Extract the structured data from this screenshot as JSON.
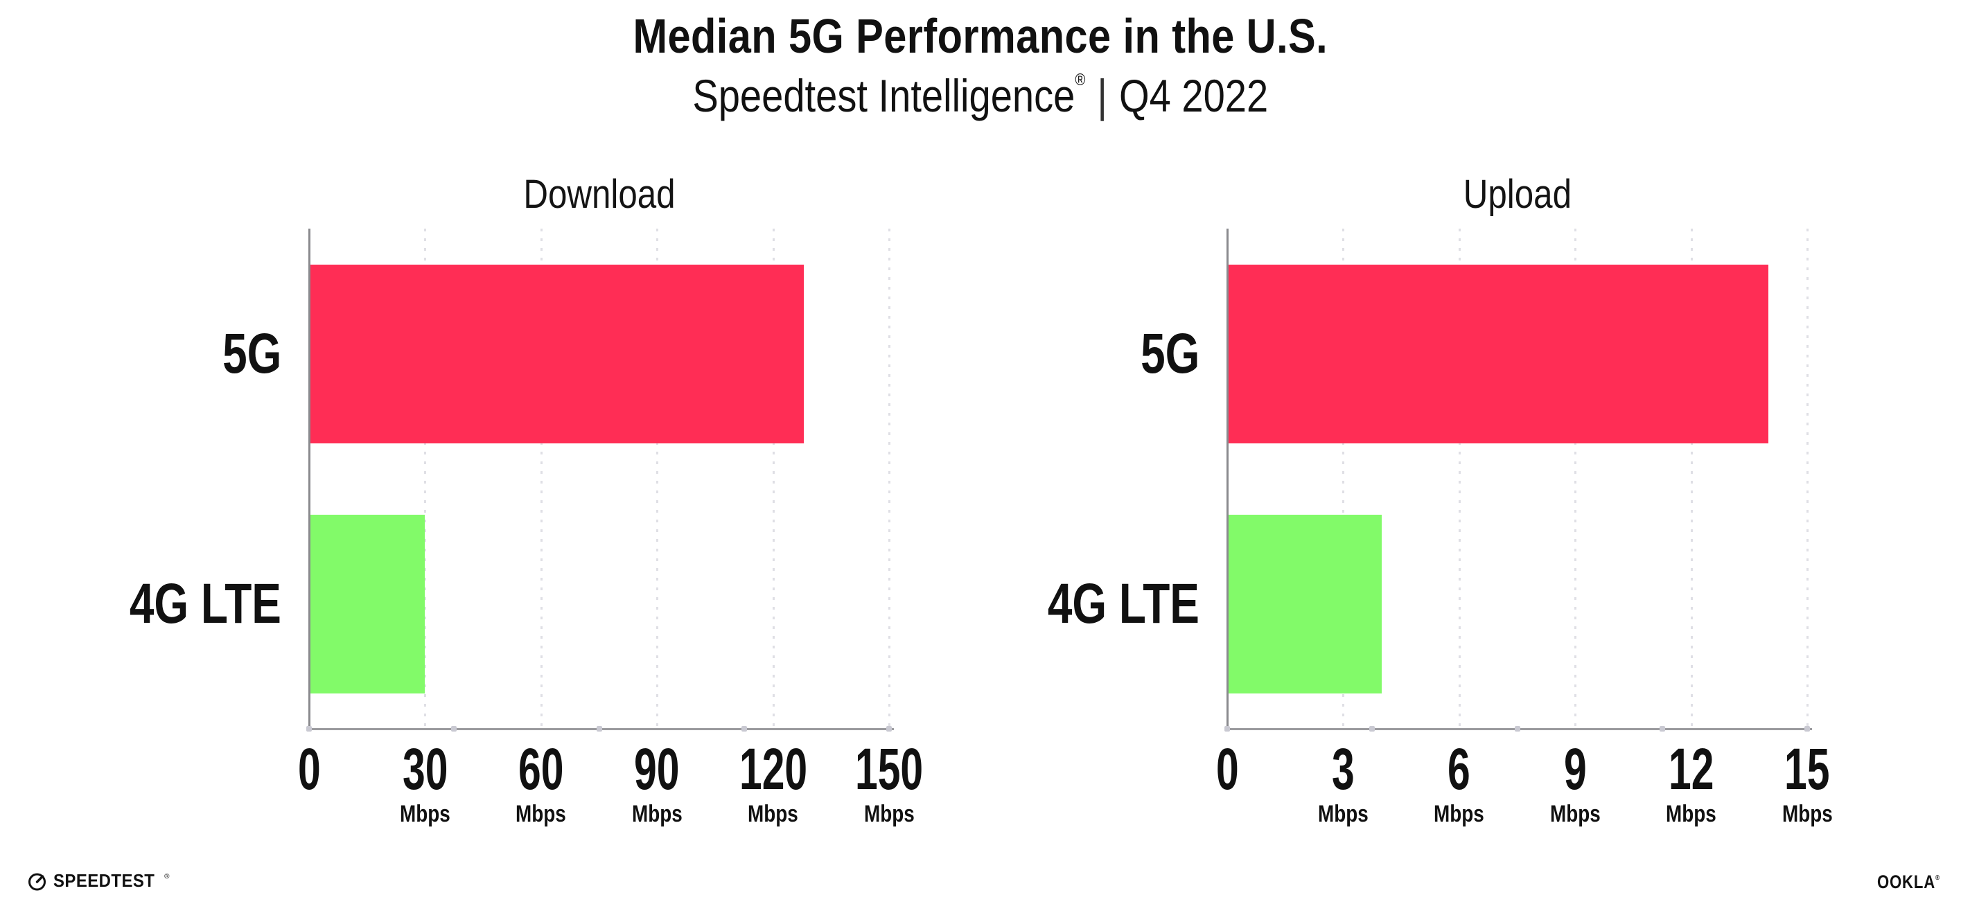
{
  "header": {
    "title": "Median 5G Performance in the U.S.",
    "subtitle_brand": "Speedtest Intelligence",
    "subtitle_reg": "®",
    "subtitle_separator": "|",
    "subtitle_period": "Q4 2022"
  },
  "colors": {
    "bar_5g": "#FF2D55",
    "bar_4g_lte": "#82FA69",
    "gridline": "#dfdfe5",
    "axis": "#9a9a9e",
    "text": "#111111"
  },
  "chart_data": [
    {
      "type": "bar",
      "orientation": "horizontal",
      "title": "Download",
      "categories": [
        "5G",
        "4G LTE"
      ],
      "values": [
        128,
        30
      ],
      "unit": "Mbps",
      "xlim": [
        0,
        150
      ],
      "ticks": [
        0,
        30,
        60,
        90,
        120,
        150
      ],
      "bar_colors": [
        "#FF2D55",
        "#82FA69"
      ],
      "grid": "dotted-vertical",
      "legend": "none"
    },
    {
      "type": "bar",
      "orientation": "horizontal",
      "title": "Upload",
      "categories": [
        "5G",
        "4G LTE"
      ],
      "values": [
        14,
        4
      ],
      "unit": "Mbps",
      "xlim": [
        0,
        15
      ],
      "ticks": [
        0,
        3,
        6,
        9,
        12,
        15
      ],
      "bar_colors": [
        "#FF2D55",
        "#82FA69"
      ],
      "grid": "dotted-vertical",
      "legend": "none"
    }
  ],
  "footer": {
    "speedtest_label": "SPEEDTEST",
    "speedtest_reg": "®",
    "ookla_label": "OOKLA",
    "ookla_reg": "®"
  }
}
